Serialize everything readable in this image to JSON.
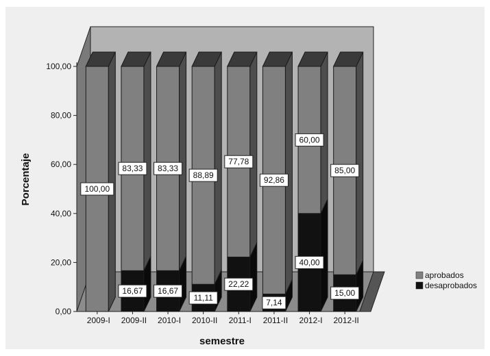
{
  "chart_data": {
    "type": "bar",
    "stacked": true,
    "three_d": true,
    "xlabel": "semestre",
    "ylabel": "Porcentaje",
    "ylim": [
      0,
      100
    ],
    "yticks": [
      "0,00",
      "20,00",
      "40,00",
      "60,00",
      "80,00",
      "100,00"
    ],
    "categories": [
      "2009-I",
      "2009-II",
      "2010-I",
      "2010-II",
      "2011-I",
      "2011-II",
      "2012-I",
      "2012-II"
    ],
    "series": [
      {
        "name": "aprobados",
        "color": "#808080",
        "values": [
          100.0,
          83.33,
          83.33,
          88.89,
          77.78,
          92.86,
          60.0,
          85.0
        ],
        "labels": [
          "100,00",
          "83,33",
          "83,33",
          "88,89",
          "77,78",
          "92,86",
          "60,00",
          "85,00"
        ]
      },
      {
        "name": "desaprobados",
        "color": "#111111",
        "values": [
          0,
          16.67,
          16.67,
          11.11,
          22.22,
          7.14,
          40.0,
          15.0
        ],
        "labels": [
          "",
          "16,67",
          "16,67",
          "11,11",
          "22,22",
          "7,14",
          "40,00",
          "15,00"
        ]
      }
    ],
    "legend_position": "right"
  }
}
